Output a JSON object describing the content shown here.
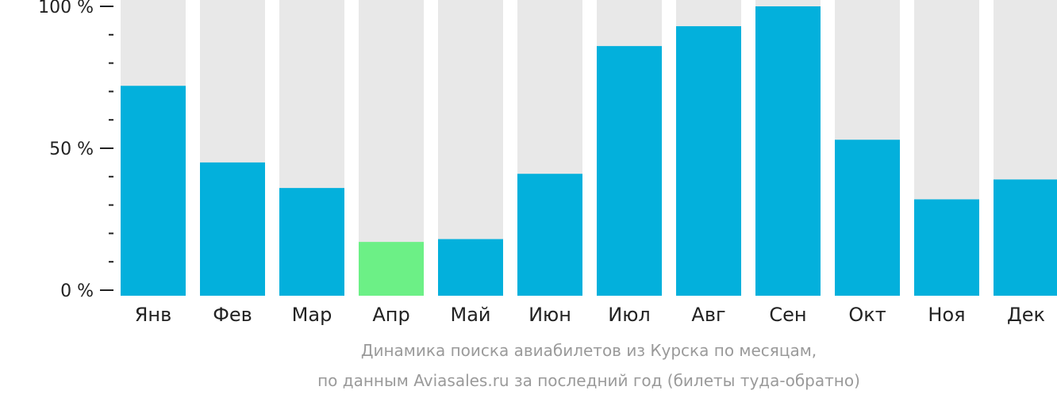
{
  "chart_data": {
    "type": "bar",
    "categories": [
      "Янв",
      "Фев",
      "Мар",
      "Апр",
      "Май",
      "Июн",
      "Июл",
      "Авг",
      "Сен",
      "Окт",
      "Ноя",
      "Дек"
    ],
    "values": [
      72,
      45,
      36,
      17,
      18,
      41,
      86,
      93,
      100,
      53,
      32,
      39
    ],
    "highlight_index": 3,
    "ylim": [
      0,
      100
    ],
    "y_ticks": [
      {
        "value": 0,
        "label": "0 %"
      },
      {
        "value": 50,
        "label": "50 %"
      },
      {
        "value": 100,
        "label": "100 %"
      }
    ],
    "y_minor_step": 10,
    "caption_line1": "Динамика поиска авиабилетов из Курска по месяцам,",
    "caption_line2": "по данным Aviasales.ru за последний год (билеты туда-обратно)",
    "colors": {
      "bar": "#03B0DC",
      "highlight": "#6CF086",
      "background": "#E8E8E8",
      "axis": "#222222",
      "caption": "#9A9A9A"
    }
  }
}
